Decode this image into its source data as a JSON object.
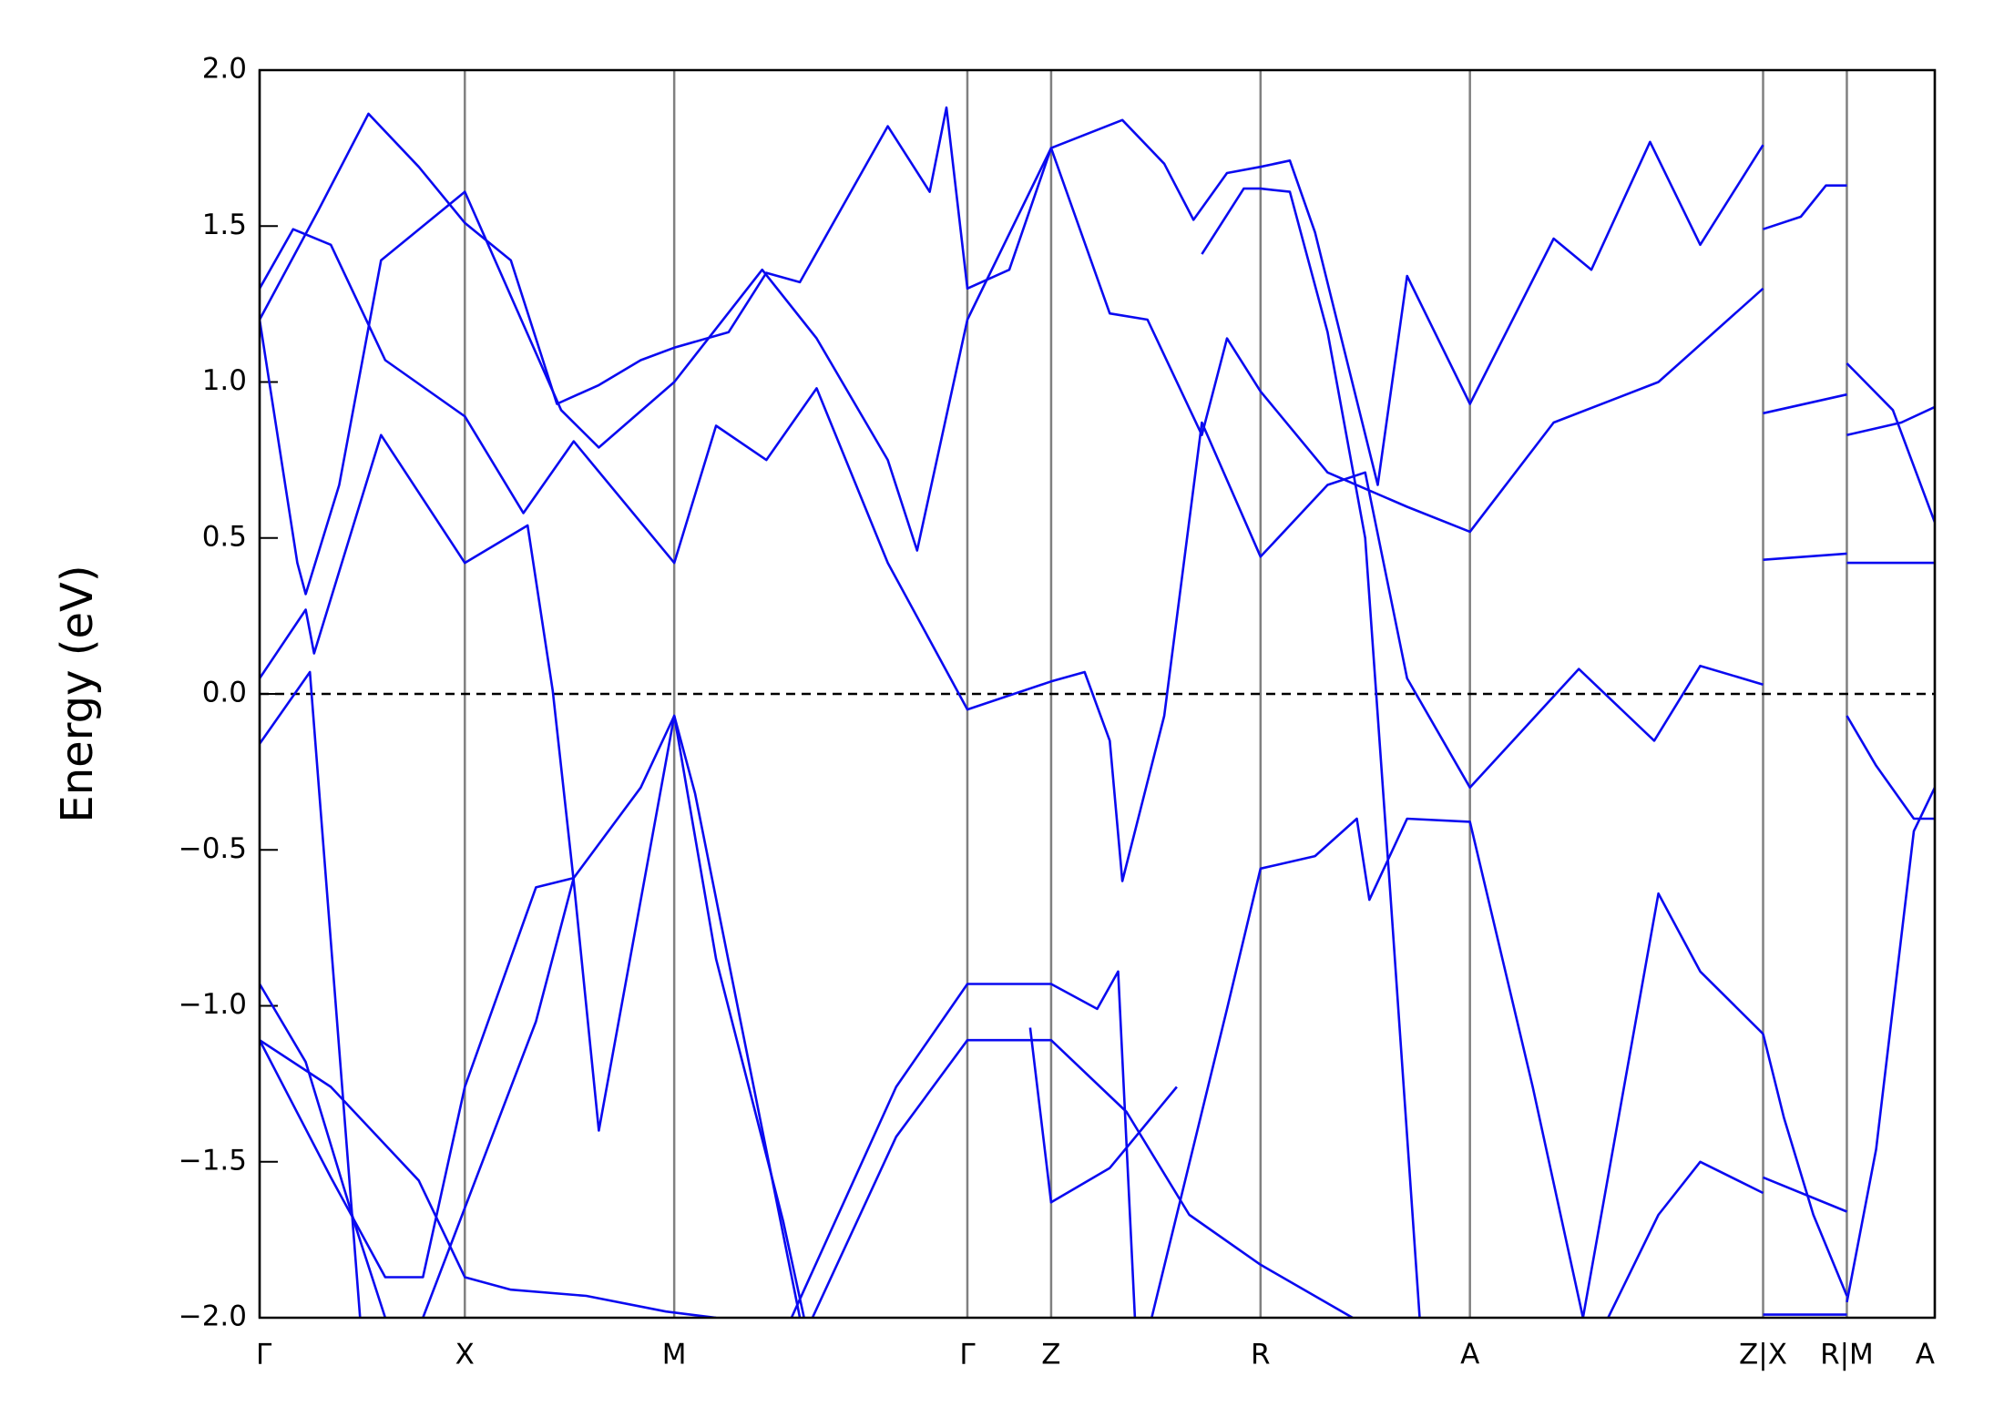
{
  "chart_data": {
    "type": "line",
    "y_label": "Energy (eV)",
    "xlim": [
      0,
      4.0
    ],
    "ylim": [
      -2,
      2
    ],
    "xticks": [
      {
        "value": 0,
        "label": "Γ"
      },
      {
        "value": 0.49,
        "label": "X"
      },
      {
        "value": 0.99,
        "label": "M"
      },
      {
        "value": 1.69,
        "label": "Γ"
      },
      {
        "value": 1.89,
        "label": "Z"
      },
      {
        "value": 2.39,
        "label": "R"
      },
      {
        "value": 2.89,
        "label": "A"
      },
      {
        "value": 3.59,
        "label": "Z|X"
      },
      {
        "value": 3.79,
        "label": "R|M"
      },
      {
        "value": 4.0,
        "label": "A"
      }
    ],
    "yticks": [
      {
        "value": -2,
        "label": "−2.0"
      },
      {
        "value": -1.5,
        "label": "−1.5"
      },
      {
        "value": -1,
        "label": "−1.0"
      },
      {
        "value": -0.5,
        "label": "−0.5"
      },
      {
        "value": 0,
        "label": "0.0"
      },
      0.5,
      {
        "value": 1,
        "label": "1.0"
      },
      1.5,
      {
        "value": 2,
        "label": "2.0"
      }
    ],
    "grid": "x",
    "grid_color": "#808080",
    "color": "#0a0af0",
    "fermi_level": 0,
    "series": [
      {
        "x": [
          0,
          0.12,
          0.24
        ],
        "values": [
          -0.16,
          0.07,
          -2.0
        ]
      },
      {
        "x": [
          0,
          0.11,
          0.13,
          0.29,
          0.49,
          0.64,
          0.7,
          0.75,
          0.81,
          0.99,
          1.09,
          1.25,
          1.3
        ],
        "values": [
          0.05,
          0.27,
          0.13,
          0.83,
          0.42,
          0.54,
          0.01,
          -0.6,
          -1.4,
          -0.07,
          -0.85,
          -1.69,
          -2.0
        ]
      },
      {
        "x": [
          0.39,
          0.66,
          0.75,
          0.91,
          0.99,
          1.04,
          1.15,
          1.29
        ],
        "values": [
          -2.0,
          -1.05,
          -0.59,
          -0.3,
          -0.07,
          -0.32,
          -1.06,
          -2.0
        ]
      },
      {
        "x": [
          0,
          0.09,
          0.11,
          0.19,
          0.29,
          0.49,
          0.72,
          0.81,
          0.99,
          1.2,
          1.33,
          1.5,
          1.57,
          1.69,
          1.89,
          2.03,
          2.12,
          2.25,
          2.31,
          2.39,
          2.55,
          2.74,
          2.89,
          3.09,
          3.34,
          3.59
        ],
        "values": [
          1.2,
          0.42,
          0.32,
          0.67,
          1.39,
          1.61,
          0.91,
          0.79,
          1.0,
          1.36,
          1.14,
          0.75,
          0.46,
          1.2,
          1.75,
          1.22,
          1.2,
          0.83,
          1.14,
          0.97,
          0.71,
          0.6,
          0.52,
          0.87,
          1.0,
          1.3
        ]
      },
      {
        "x": [
          0,
          0.08,
          0.17,
          0.3,
          0.49,
          0.63,
          0.75,
          0.99,
          1.09,
          1.21,
          1.33,
          1.5,
          1.69,
          1.89,
          1.97,
          2.03,
          2.06,
          2.16,
          2.25,
          2.39,
          2.55,
          2.64,
          2.74,
          2.89,
          3.15,
          3.33,
          3.44,
          3.59
        ],
        "values": [
          1.3,
          1.49,
          1.44,
          1.07,
          0.89,
          0.58,
          0.81,
          0.42,
          0.86,
          0.75,
          0.98,
          0.42,
          -0.05,
          0.04,
          0.07,
          -0.15,
          -0.6,
          -0.07,
          0.87,
          0.44,
          0.67,
          0.71,
          0.05,
          -0.3,
          0.08,
          -0.15,
          0.09,
          0.03
        ]
      },
      {
        "x": [
          0,
          0.14,
          0.26,
          0.38,
          0.49,
          0.6,
          0.71,
          0.81,
          0.91,
          0.99,
          1.12,
          1.21,
          1.29,
          1.5,
          1.6,
          1.64,
          1.69,
          1.79,
          1.89,
          2.06,
          2.16,
          2.23,
          2.31,
          2.39,
          2.46,
          2.52,
          2.67,
          2.74,
          2.89,
          3.09,
          3.18,
          3.32,
          3.44,
          3.59
        ],
        "values": [
          1.2,
          1.55,
          1.86,
          1.69,
          1.51,
          1.39,
          0.93,
          0.99,
          1.07,
          1.11,
          1.16,
          1.35,
          1.32,
          1.82,
          1.61,
          1.88,
          1.3,
          1.36,
          1.75,
          1.84,
          1.7,
          1.52,
          1.67,
          1.69,
          1.71,
          1.48,
          0.67,
          1.34,
          0.93,
          1.46,
          1.36,
          1.77,
          1.44,
          1.76
        ]
      },
      {
        "x": [
          2.25,
          2.35,
          2.39,
          2.46,
          2.55,
          2.64,
          2.7,
          2.77
        ],
        "values": [
          1.41,
          1.62,
          1.62,
          1.61,
          1.16,
          0.5,
          -0.64,
          -2.0
        ]
      },
      {
        "x": [
          2.13,
          2.31,
          2.39,
          2.52,
          2.62,
          2.65,
          2.74,
          2.89,
          3.04,
          3.16
        ],
        "values": [
          -2.0,
          -1.01,
          -0.56,
          -0.52,
          -0.4,
          -0.66,
          -0.4,
          -0.41,
          -1.26,
          -2.0
        ]
      },
      {
        "x": [
          1.27,
          1.52,
          1.69,
          1.89,
          2.0,
          2.05,
          2.09
        ],
        "values": [
          -2.0,
          -1.26,
          -0.93,
          -0.93,
          -1.01,
          -0.89,
          -2.0
        ]
      },
      {
        "x": [
          1.32,
          1.52,
          1.69,
          1.89,
          2.07,
          2.22,
          2.39,
          2.61
        ],
        "values": [
          -2.0,
          -1.42,
          -1.11,
          -1.11,
          -1.34,
          -1.67,
          -1.83,
          -2.0
        ]
      },
      {
        "x": [
          0,
          0.11,
          0.23,
          0.3
        ],
        "values": [
          -0.93,
          -1.18,
          -1.71,
          -2.0
        ]
      },
      {
        "x": [
          0,
          0.17,
          0.38,
          0.49,
          0.6,
          0.78,
          0.97,
          1.09
        ],
        "values": [
          -1.11,
          -1.26,
          -1.56,
          -1.87,
          -1.91,
          -1.93,
          -1.98,
          -2.0
        ]
      },
      {
        "x": [
          0,
          0.17,
          0.3,
          0.39,
          0.49,
          0.66,
          0.75
        ],
        "values": [
          -1.11,
          -1.55,
          -1.87,
          -1.87,
          -1.26,
          -0.62,
          -0.59
        ]
      },
      {
        "x": [
          1.84,
          1.89,
          2.03,
          2.19
        ],
        "values": [
          -1.07,
          -1.63,
          -1.52,
          -1.26
        ]
      },
      {
        "x": [
          3.22,
          3.34,
          3.44,
          3.59
        ],
        "values": [
          -2.0,
          -1.67,
          -1.5,
          -1.6
        ]
      },
      {
        "x": [
          3.16,
          3.34,
          3.44,
          3.59
        ],
        "values": [
          -2.0,
          -0.64,
          -0.89,
          -1.09
        ]
      },
      {
        "x": [
          3.59,
          3.68,
          3.74,
          3.79
        ],
        "values": [
          1.49,
          1.53,
          1.63,
          1.63
        ]
      },
      {
        "x": [
          3.59,
          3.79
        ],
        "values": [
          0.9,
          0.96
        ]
      },
      {
        "x": [
          3.59,
          3.79
        ],
        "values": [
          0.43,
          0.45
        ]
      },
      {
        "x": [
          3.59,
          3.64,
          3.71,
          3.79
        ],
        "values": [
          -1.09,
          -1.36,
          -1.67,
          -1.93
        ]
      },
      {
        "x": [
          3.59,
          3.79
        ],
        "values": [
          -1.99,
          -1.99
        ]
      },
      {
        "x": [
          3.59,
          3.79
        ],
        "values": [
          -1.55,
          -1.66
        ]
      },
      {
        "x": [
          3.79,
          3.9,
          4.0
        ],
        "values": [
          1.06,
          0.91,
          0.55
        ]
      },
      {
        "x": [
          3.79,
          3.92,
          4.0
        ],
        "values": [
          0.83,
          0.87,
          0.92
        ]
      },
      {
        "x": [
          3.79,
          4.0
        ],
        "values": [
          0.42,
          0.42
        ]
      },
      {
        "x": [
          3.79,
          3.86,
          3.95,
          4.0
        ],
        "values": [
          -0.07,
          -0.23,
          -0.4,
          -0.4
        ]
      },
      {
        "x": [
          3.79,
          3.86,
          3.95,
          4.0
        ],
        "values": [
          -1.95,
          -1.46,
          -0.44,
          -0.3
        ]
      }
    ]
  }
}
